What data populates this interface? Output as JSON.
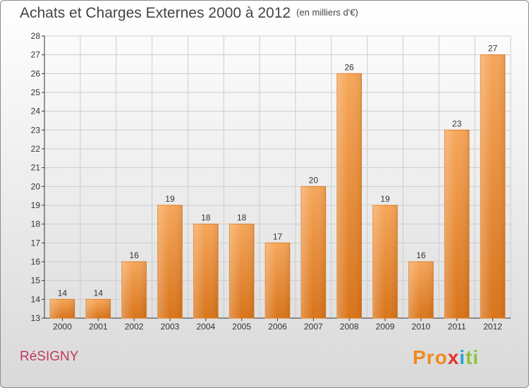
{
  "header": {
    "title": "Achats et Charges Externes 2000 à 2012",
    "unit": "(en milliers d'€)"
  },
  "footer": {
    "commune": "RéSIGNY",
    "logo": [
      "Pro",
      "x",
      "i",
      "ti"
    ]
  },
  "colors": {
    "bar": "#f08c2a",
    "bar_light": "#f6a65a",
    "grid": "#cccccc",
    "axis": "#333333"
  },
  "chart_data": {
    "type": "bar",
    "title": "Achats et Charges Externes 2000 à 2012",
    "subtitle": "(en milliers d'€)",
    "xlabel": "",
    "ylabel": "",
    "categories": [
      "2000",
      "2001",
      "2002",
      "2003",
      "2004",
      "2005",
      "2006",
      "2007",
      "2008",
      "2009",
      "2010",
      "2011",
      "2012"
    ],
    "values": [
      14,
      14,
      16,
      19,
      18,
      18,
      17,
      20,
      26,
      19,
      16,
      23,
      27
    ],
    "ylim": [
      13,
      28
    ],
    "yticks": [
      13,
      14,
      15,
      16,
      17,
      18,
      19,
      20,
      21,
      22,
      23,
      24,
      25,
      26,
      27,
      28
    ],
    "grid": true,
    "legend": "none"
  }
}
